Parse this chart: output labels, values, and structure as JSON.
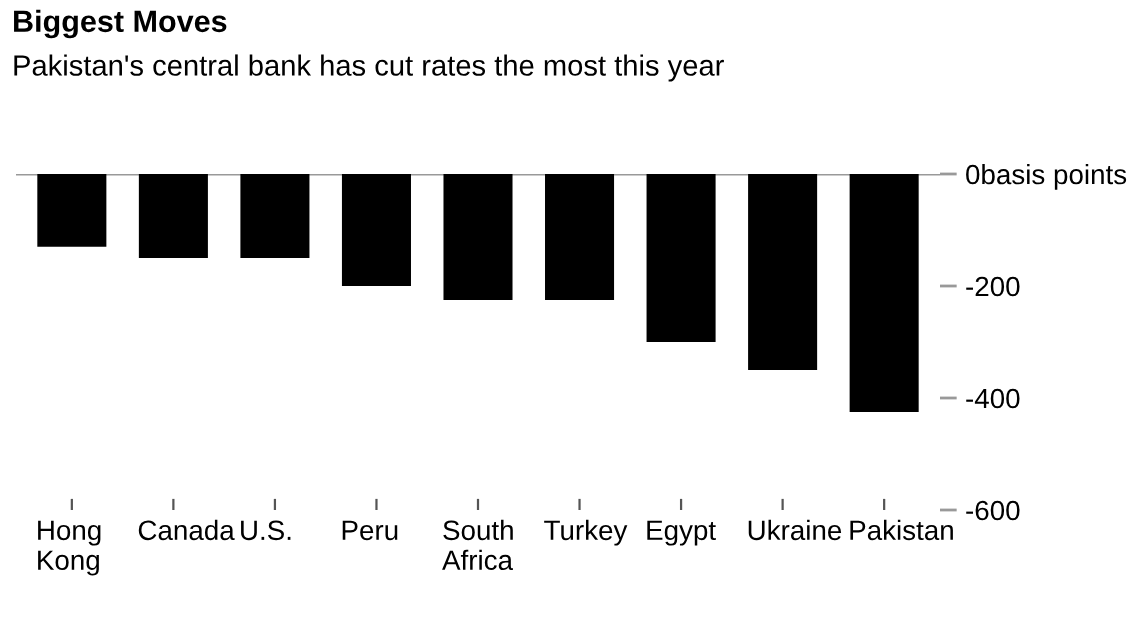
{
  "chart_data": {
    "type": "bar",
    "title": "Biggest Moves",
    "subtitle": "Pakistan's central bank has cut rates the most this year",
    "categories": [
      "Hong Kong",
      "Canada",
      "U.S.",
      "Peru",
      "South Africa",
      "Turkey",
      "Egypt",
      "Ukraine",
      "Pakistan"
    ],
    "values": [
      -130,
      -150,
      -150,
      -200,
      -225,
      -225,
      -300,
      -350,
      -425
    ],
    "color": "#000000",
    "ylim": [
      -600,
      0
    ],
    "yticks": [
      {
        "value": 0,
        "label": "0basis points"
      },
      -200,
      -400,
      -600
    ],
    "ref_lines": [
      {
        "axis": "y",
        "value": 0,
        "color": "#999999"
      }
    ],
    "grid": false,
    "legend": false
  }
}
